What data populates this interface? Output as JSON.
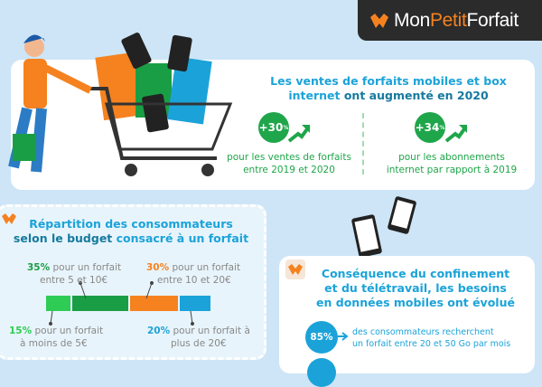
{
  "brand": {
    "name_part1": "Mon",
    "name_part2": "Petit",
    "name_part3": "Forfait",
    "accent": "#f5821f"
  },
  "sales": {
    "title_line1": "Les ventes de forfaits mobiles et box",
    "title_line2a": "internet ",
    "title_line2b": "ont augmenté en 2020",
    "stats": [
      {
        "value": "+30",
        "unit": "%",
        "text_line1": "pour les ventes de forfaits",
        "text_line2": "entre 2019 et 2020"
      },
      {
        "value": "+34",
        "unit": "%",
        "text_line1": "pour les abonnements",
        "text_line2": "internet par rapport à 2019"
      }
    ]
  },
  "budget": {
    "title_line1": "Répartition des consommateurs",
    "title_line2a": "selon le budget ",
    "title_line2b": "consacré à un forfait",
    "segments": [
      {
        "pct": "15%",
        "value": 15,
        "line1": " pour un forfait",
        "line2": "à moins de 5€",
        "color": "#2ecc55"
      },
      {
        "pct": "35%",
        "value": 35,
        "line1": " pour un forfait",
        "line2": "entre 5 et 10€",
        "color": "#1a9e45"
      },
      {
        "pct": "30%",
        "value": 30,
        "line1": " pour un forfait",
        "line2": "entre 10 et 20€",
        "color": "#f5821f"
      },
      {
        "pct": "20%",
        "value": 20,
        "line1": " pour un forfait à",
        "line2": "plus de 20€",
        "color": "#1ba3d9"
      }
    ]
  },
  "data_needs": {
    "title_line1": "Conséquence du confinement",
    "title_line2": "et du télétravail, les besoins",
    "title_line3": "en données mobiles ont évolué",
    "stat": {
      "value": "85%",
      "line1": "des consommateurs recherchent",
      "line2": "un forfait entre 20 et 50 Go par mois"
    }
  }
}
